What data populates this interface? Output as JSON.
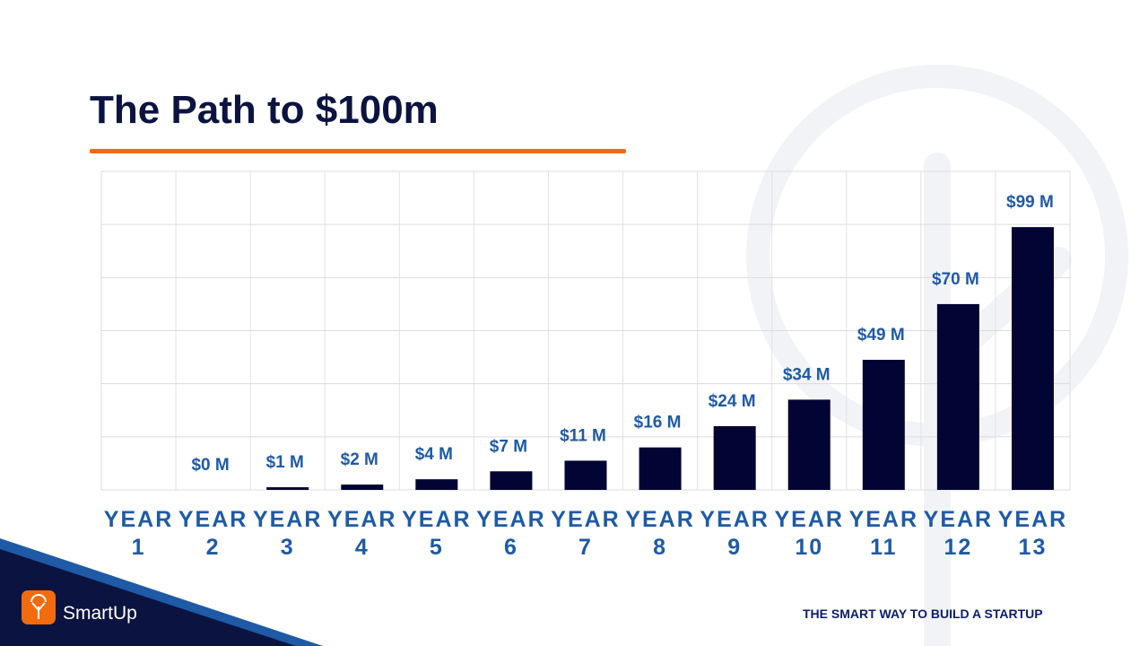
{
  "title": "The Path to $100m",
  "chart_data": {
    "type": "bar",
    "categories": [
      "YEAR 1",
      "YEAR 2",
      "YEAR 3",
      "YEAR 4",
      "YEAR 5",
      "YEAR 6",
      "YEAR 7",
      "YEAR 8",
      "YEAR 9",
      "YEAR 10",
      "YEAR 11",
      "YEAR 12",
      "YEAR 13"
    ],
    "values": [
      null,
      0,
      1,
      2,
      4,
      7,
      11,
      16,
      24,
      34,
      49,
      70,
      99
    ],
    "value_labels": [
      null,
      "$0 M",
      "$1 M",
      "$2 M",
      "$4 M",
      "$7 M",
      "$11 M",
      "$16 M",
      "$24 M",
      "$34 M",
      "$49 M",
      "$70 M",
      "$99 M"
    ],
    "color": "#020433",
    "ylim": [
      0,
      120
    ],
    "yticks": [
      0,
      20,
      40,
      60,
      80,
      100,
      120
    ],
    "grid": true
  },
  "footer": {
    "logo": "SmartUp",
    "tagline": "THE SMART WAY TO BUILD A STARTUP"
  }
}
